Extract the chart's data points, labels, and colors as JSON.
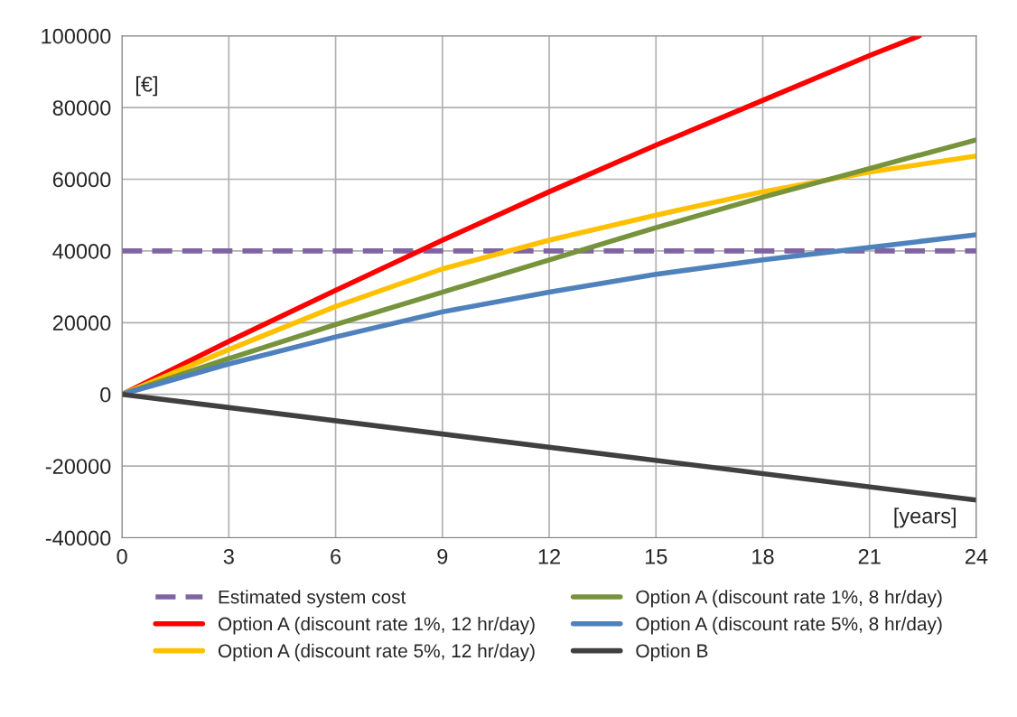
{
  "chart_data": {
    "type": "line",
    "xlabel": "[years]",
    "ylabel": "[€]",
    "xlim": [
      0,
      24
    ],
    "xticks": [
      0,
      3,
      6,
      9,
      12,
      15,
      18,
      21,
      24
    ],
    "ylim": [
      -40000,
      100000
    ],
    "yticks": [
      -40000,
      -20000,
      0,
      20000,
      40000,
      60000,
      80000,
      100000
    ],
    "grid": true,
    "legend": "bottom",
    "marker": "none",
    "line_style": "solid",
    "series": [
      {
        "name": "Estimated system cost",
        "color": "#8064a2",
        "line_style": "dashed",
        "x": [
          0,
          24
        ],
        "values": [
          40000,
          40000
        ]
      },
      {
        "name": "Option A (discount rate 1%, 12 hr/day)",
        "color": "#ff0000",
        "x": [
          0,
          3,
          6,
          9,
          12,
          15,
          18,
          21,
          22.4
        ],
        "values": [
          0,
          14800,
          29000,
          43000,
          56500,
          69500,
          82000,
          94500,
          100000
        ]
      },
      {
        "name": "Option A (discount rate 5%, 12 hr/day)",
        "color": "#ffc000",
        "x": [
          0,
          3,
          6,
          9,
          12,
          15,
          18,
          21,
          24
        ],
        "values": [
          0,
          12500,
          24500,
          35000,
          43000,
          50000,
          56500,
          62000,
          66500
        ]
      },
      {
        "name": "Option A (discount rate 1%, 8 hr/day)",
        "color": "#77933c",
        "x": [
          0,
          3,
          6,
          9,
          12,
          15,
          18,
          21,
          24
        ],
        "values": [
          0,
          10000,
          19500,
          28500,
          37500,
          46500,
          55000,
          63000,
          71000
        ]
      },
      {
        "name": "Option A (discount rate 5%, 8 hr/day)",
        "color": "#4f81bd",
        "x": [
          0,
          3,
          6,
          9,
          12,
          15,
          18,
          21,
          24
        ],
        "values": [
          0,
          8500,
          16000,
          23000,
          28500,
          33500,
          37500,
          41000,
          44500
        ]
      },
      {
        "name": "Option B",
        "color": "#404040",
        "x": [
          0,
          24
        ],
        "values": [
          0,
          -29500
        ]
      }
    ]
  }
}
